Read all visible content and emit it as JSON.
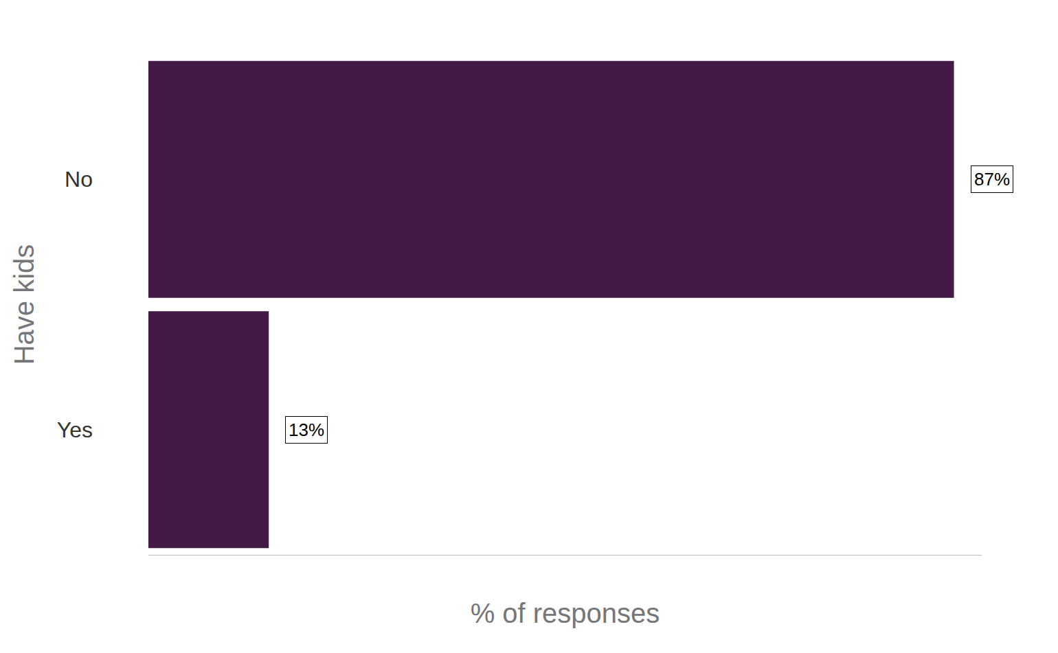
{
  "chart_data": {
    "type": "bar",
    "orientation": "horizontal",
    "categories": [
      "No",
      "Yes"
    ],
    "values": [
      87,
      13
    ],
    "value_labels": [
      "87%",
      "13%"
    ],
    "color": "#421a45",
    "xlabel": "% of responses",
    "ylabel": "Have kids",
    "xlim": [
      0,
      90
    ],
    "grid": false,
    "data_labels": true,
    "tick_labels": "y"
  }
}
